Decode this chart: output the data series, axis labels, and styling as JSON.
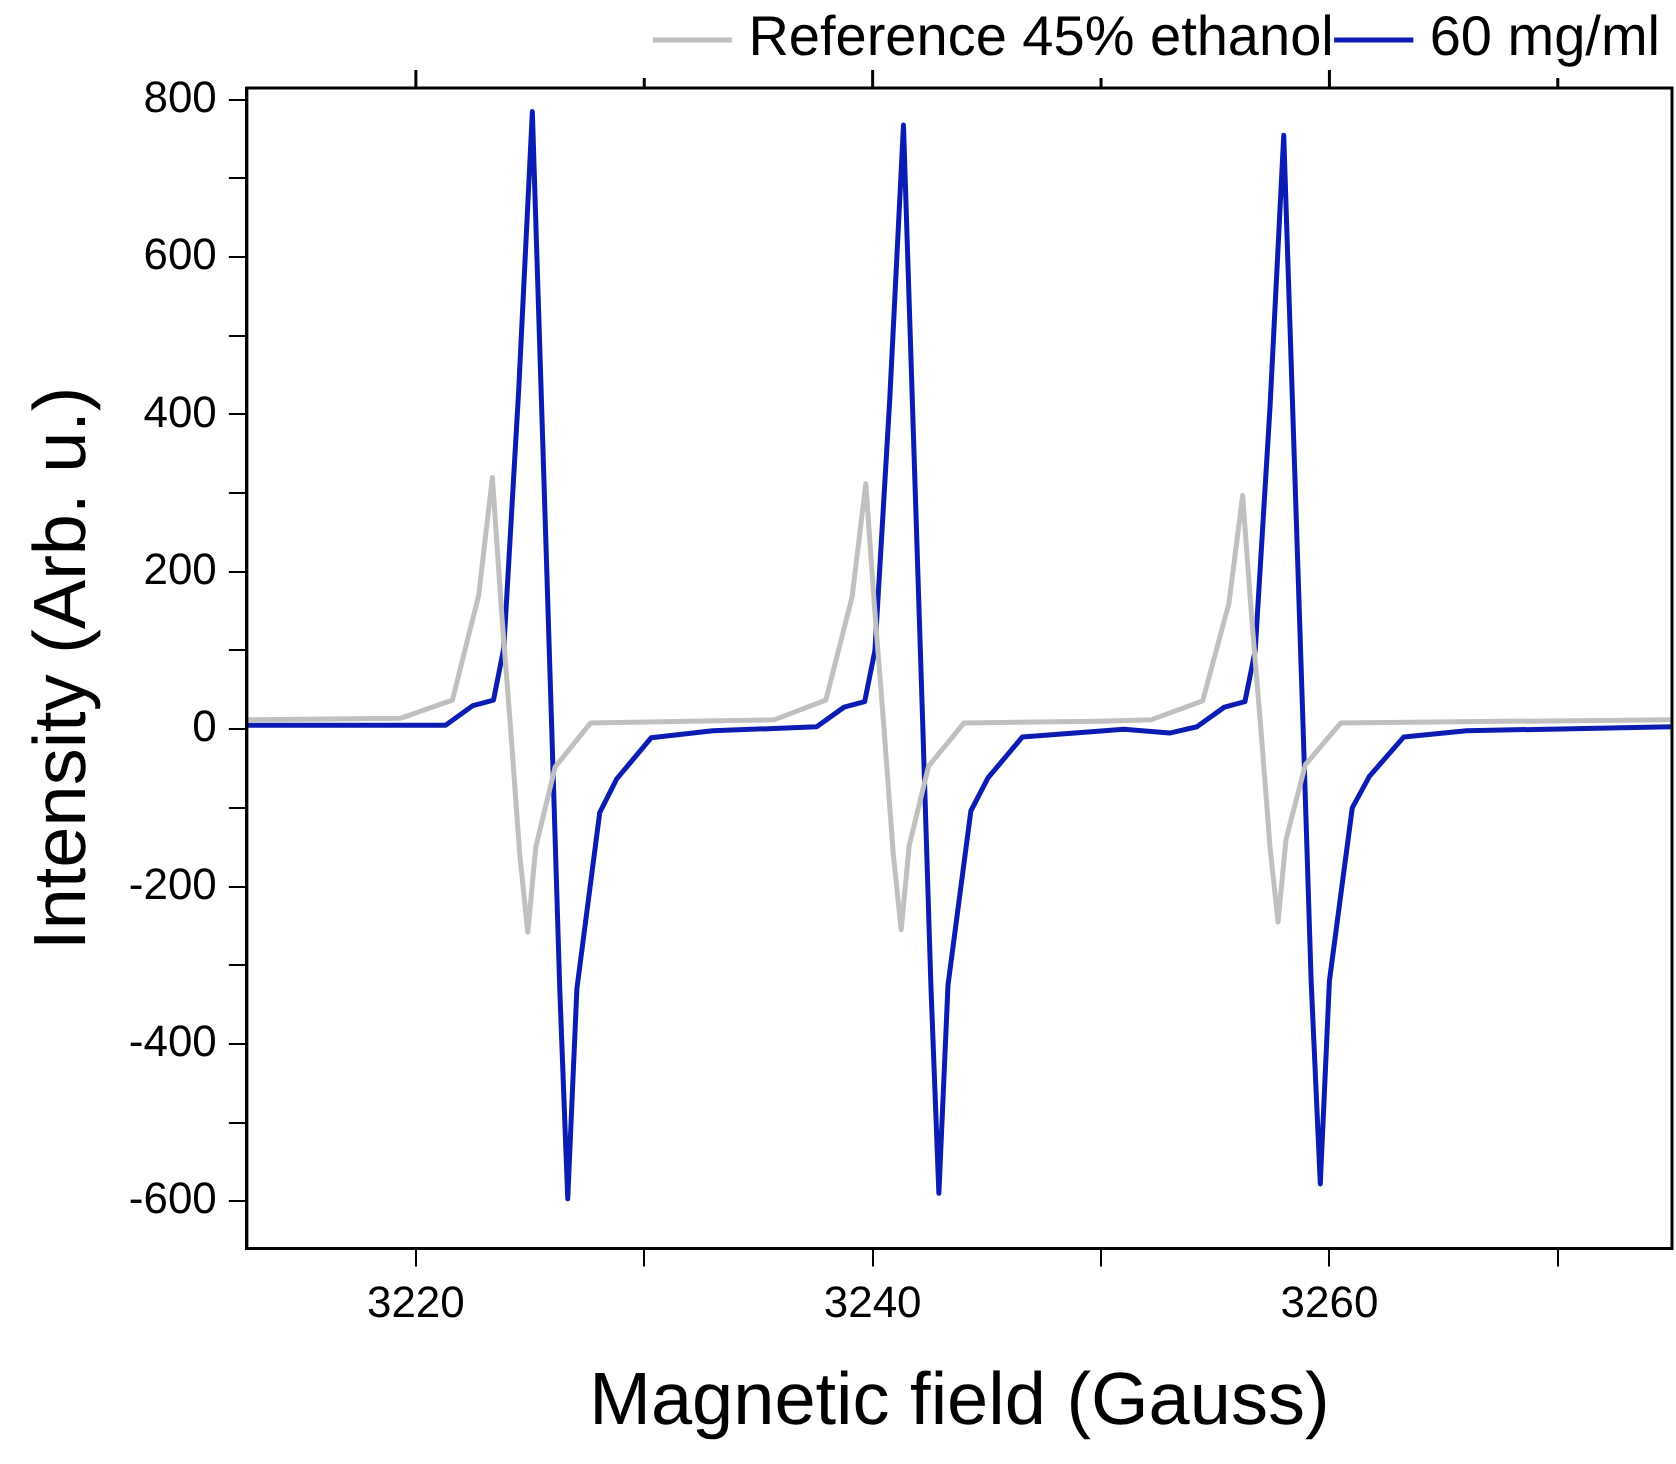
{
  "chart_data": {
    "type": "line",
    "xlabel": "Magnetic field (Gauss)",
    "ylabel": "Intensity (Arb. u.)",
    "xlim": [
      3212.6,
      3275
    ],
    "ylim": [
      -660,
      815
    ],
    "xticks": [
      3220,
      {
        "value": 3230,
        "label": null
      },
      3240,
      {
        "value": 3250,
        "label": null
      },
      3260,
      {
        "value": 3270,
        "label": null
      }
    ],
    "yticks": [
      -600,
      {
        "value": -500,
        "label": null
      },
      -400,
      {
        "value": -300,
        "label": null
      },
      -200,
      {
        "value": -100,
        "label": null
      },
      0,
      {
        "value": 100,
        "label": null
      },
      200,
      {
        "value": 300,
        "label": null
      },
      400,
      {
        "value": 500,
        "label": null
      },
      600,
      {
        "value": 700,
        "label": null
      },
      800
    ],
    "grid": false,
    "legend": "top right",
    "marker": "none",
    "line_style": "solid",
    "series": [
      {
        "name": "Reference 45% ethanol",
        "color": "#c0c0c0",
        "x": [
          3212.6,
          3219.35,
          3221.6,
          3222.75,
          3223.35,
          3223.75,
          3224.15,
          3224.55,
          3224.9,
          3225.25,
          3226.1,
          3227.65,
          3232,
          3235.7,
          3237.95,
          3239.1,
          3239.7,
          3240.1,
          3240.5,
          3240.9,
          3241.25,
          3241.6,
          3242.45,
          3244,
          3250,
          3252.2,
          3254.45,
          3255.6,
          3256.2,
          3256.6,
          3257,
          3257.4,
          3257.75,
          3258.1,
          3258.95,
          3260.5,
          3275
        ],
        "values": [
          12,
          14,
          37,
          170,
          320,
          150,
          0,
          -160,
          -258,
          -150,
          -48,
          8,
          10,
          12,
          37,
          168,
          312,
          148,
          0,
          -158,
          -255,
          -148,
          -47,
          8,
          10,
          12,
          36,
          160,
          297,
          140,
          0,
          -150,
          -245,
          -140,
          -45,
          8,
          12
        ]
      },
      {
        "name": "60 mg/ml",
        "color": "#0b1cb2",
        "x": [
          3212.6,
          3221.3,
          3222.5,
          3223.4,
          3223.85,
          3224.5,
          3225.1,
          3225.95,
          3226.3,
          3226.65,
          3227.05,
          3228.05,
          3228.8,
          3230.3,
          3233,
          3237.55,
          3238.75,
          3239.65,
          3240.1,
          3240.75,
          3241.35,
          3242.2,
          3242.55,
          3242.9,
          3243.3,
          3244.3,
          3245.05,
          3246.55,
          3251,
          3253,
          3254.2,
          3255.4,
          3256.3,
          3256.75,
          3257.4,
          3258,
          3258.85,
          3259.2,
          3259.6,
          3260,
          3261,
          3261.75,
          3263.25,
          3266,
          3275
        ],
        "values": [
          5,
          5,
          30,
          37,
          103,
          430,
          785,
          0,
          -330,
          -597,
          -330,
          -106,
          -63,
          -11,
          -2,
          3,
          28,
          35,
          100,
          420,
          768,
          0,
          -325,
          -590,
          -325,
          -104,
          -62,
          -10,
          0,
          -5,
          3,
          28,
          35,
          100,
          410,
          755,
          0,
          -320,
          -578,
          -320,
          -100,
          -60,
          -10,
          -2,
          3
        ]
      }
    ]
  }
}
